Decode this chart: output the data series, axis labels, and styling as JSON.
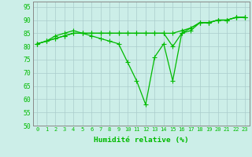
{
  "x": [
    0,
    1,
    2,
    3,
    4,
    5,
    6,
    7,
    8,
    9,
    10,
    11,
    12,
    13,
    14,
    15,
    16,
    17,
    18,
    19,
    20,
    21,
    22,
    23
  ],
  "series1": [
    81,
    82,
    84,
    85,
    86,
    85,
    85,
    85,
    85,
    85,
    85,
    85,
    85,
    85,
    85,
    85,
    86,
    87,
    89,
    89,
    90,
    90,
    91,
    91
  ],
  "series2": [
    81,
    82,
    83,
    84,
    85,
    85,
    85,
    85,
    85,
    85,
    85,
    85,
    85,
    85,
    85,
    80,
    85,
    86,
    89,
    89,
    90,
    90,
    91,
    91
  ],
  "series3": [
    81,
    82,
    83,
    84,
    85,
    85,
    84,
    83,
    82,
    81,
    74,
    67,
    58,
    76,
    81,
    67,
    85,
    87,
    89,
    89,
    90,
    90,
    91,
    91
  ],
  "line_color": "#00bb00",
  "bg_color": "#cceee8",
  "grid_color": "#aacccc",
  "xlabel": "Humidité relative (%)",
  "ylim": [
    50,
    97
  ],
  "yticks": [
    50,
    55,
    60,
    65,
    70,
    75,
    80,
    85,
    90,
    95
  ],
  "xlim": [
    -0.5,
    23.5
  ]
}
